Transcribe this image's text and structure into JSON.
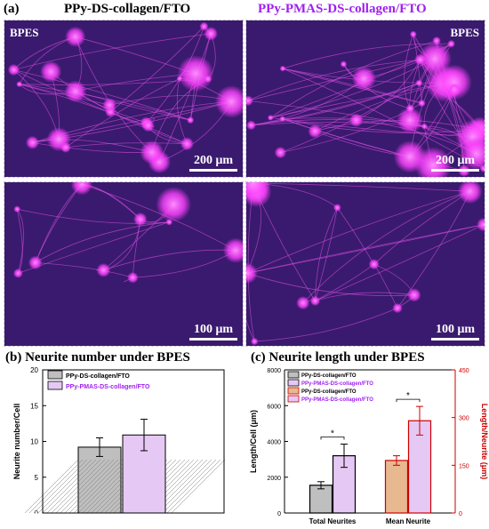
{
  "panel_a": {
    "label": "(a)",
    "left_title": "PPy-DS-collagen/FTO",
    "right_title": "PPy-PMAS-DS-collagen/FTO",
    "bpes_tag": "BPES",
    "scale_top": "200 μm",
    "scale_bottom": "100 μm"
  },
  "colors": {
    "micro_bg": "#3a1a6e",
    "cell_magenta": "#ff40ff",
    "ds_fill": "#bfbfbf",
    "pmas_fill": "#e6c8f5",
    "right_axis": "#cc0000",
    "pmas_text": "#a020f0",
    "ds_mean_fill": "#e8b890"
  },
  "chart_data": [
    {
      "type": "bar",
      "title": "(b) Neurite number under BPES",
      "ylabel": "Neurite number/Cell",
      "ylim": [
        0,
        20
      ],
      "yticks": [
        "0",
        "5",
        "10",
        "15",
        "20"
      ],
      "legend": [
        "PPy-DS-collagen/FTO",
        "PPy-PMAS-DS-collagen/FTO"
      ],
      "legend_position": "top-left",
      "series": [
        {
          "name": "PPy-DS-collagen/FTO",
          "value": 9.2,
          "error": 1.3
        },
        {
          "name": "PPy-PMAS-DS-collagen/FTO",
          "value": 10.9,
          "error": 2.2
        }
      ]
    },
    {
      "type": "bar",
      "title": "(c) Neurite length under BPES",
      "ylabel": "Length/Cell (μm)",
      "ylabel_right": "Length/Neurite (μm)",
      "ylim": [
        0,
        8000
      ],
      "ylim_right": [
        0,
        450
      ],
      "yticks": [
        "0",
        "2000",
        "4000",
        "6000",
        "8000"
      ],
      "yticks_right": [
        "0",
        "150",
        "300",
        "450"
      ],
      "categories": [
        "Total Neurites",
        "Mean Neurite"
      ],
      "legend": [
        "PPy-DS-collagen/FTO",
        "PPy-PMAS-DS-collagen/FTO",
        "PPy-DS-collagen/FTO",
        "PPy-PMAS-DS-collagen/FTO"
      ],
      "legend_position": "top-left",
      "significance": "*",
      "series": [
        {
          "name": "PPy-DS-collagen/FTO",
          "axis": "left",
          "category": "Total Neurites",
          "value": 1550,
          "error": 200
        },
        {
          "name": "PPy-PMAS-DS-collagen/FTO",
          "axis": "left",
          "category": "Total Neurites",
          "value": 3200,
          "error": 650
        },
        {
          "name": "PPy-DS-collagen/FTO",
          "axis": "right",
          "category": "Mean Neurite",
          "value": 165,
          "error": 15
        },
        {
          "name": "PPy-PMAS-DS-collagen/FTO",
          "axis": "right",
          "category": "Mean Neurite",
          "value": 290,
          "error": 45
        }
      ]
    }
  ]
}
